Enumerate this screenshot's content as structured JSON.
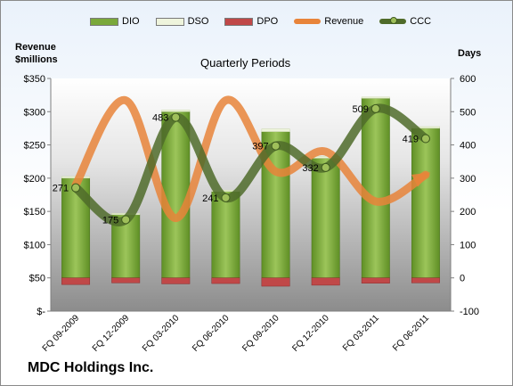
{
  "chart_data": {
    "type": "bar",
    "title": "Quarterly Periods",
    "company": "MDC Holdings Inc.",
    "left_axis_label_line1": "Revenue",
    "left_axis_label_line2": "$millions",
    "right_axis_label": "Days",
    "left_ylim": [
      0,
      350
    ],
    "right_ylim": [
      -100,
      600
    ],
    "left_ticks": [
      "$-",
      "$50",
      "$100",
      "$150",
      "$200",
      "$250",
      "$300",
      "$350"
    ],
    "right_ticks": [
      "-100",
      "0",
      "100",
      "200",
      "300",
      "400",
      "500",
      "600"
    ],
    "categories": [
      "FQ 09-2009",
      "FQ 12-2009",
      "FQ 03-2010",
      "FQ 06-2010",
      "FQ 09-2010",
      "FQ 12-2010",
      "FQ 03-2011",
      "FQ 06-2011"
    ],
    "series": [
      {
        "name": "DIO",
        "axis": "right",
        "kind": "bar",
        "color": "#7aa83a",
        "values": [
          300,
          190,
          500,
          260,
          440,
          360,
          540,
          450
        ]
      },
      {
        "name": "DSO",
        "axis": "right",
        "kind": "bar",
        "color": "#eef4dc",
        "values": [
          5,
          4,
          5,
          4,
          8,
          6,
          4,
          5
        ]
      },
      {
        "name": "DPO",
        "axis": "right",
        "kind": "bar",
        "color": "#c04848",
        "values": [
          -20,
          -15,
          -18,
          -17,
          -25,
          -22,
          -16,
          -15
        ]
      },
      {
        "name": "Revenue",
        "axis": "left",
        "kind": "line",
        "color": "#e8843a",
        "values": [
          190,
          317,
          140,
          317,
          210,
          240,
          165,
          205
        ]
      },
      {
        "name": "CCC",
        "axis": "right",
        "kind": "line",
        "color": "#4f6b2a",
        "values": [
          271,
          175,
          483,
          241,
          397,
          332,
          509,
          419
        ]
      }
    ],
    "ccc_labels": [
      "271",
      "175",
      "483",
      "241",
      "397",
      "332",
      "509",
      "419"
    ],
    "grid": false,
    "legend_position": "top"
  },
  "legend_items": [
    {
      "name": "DIO",
      "color": "#7aa83a",
      "kind": "bar"
    },
    {
      "name": "DSO",
      "color": "#eef4dc",
      "kind": "bar"
    },
    {
      "name": "DPO",
      "color": "#c04848",
      "kind": "bar"
    },
    {
      "name": "Revenue",
      "color": "#e8843a",
      "kind": "line"
    },
    {
      "name": "CCC",
      "color": "#4f6b2a",
      "kind": "line"
    }
  ]
}
